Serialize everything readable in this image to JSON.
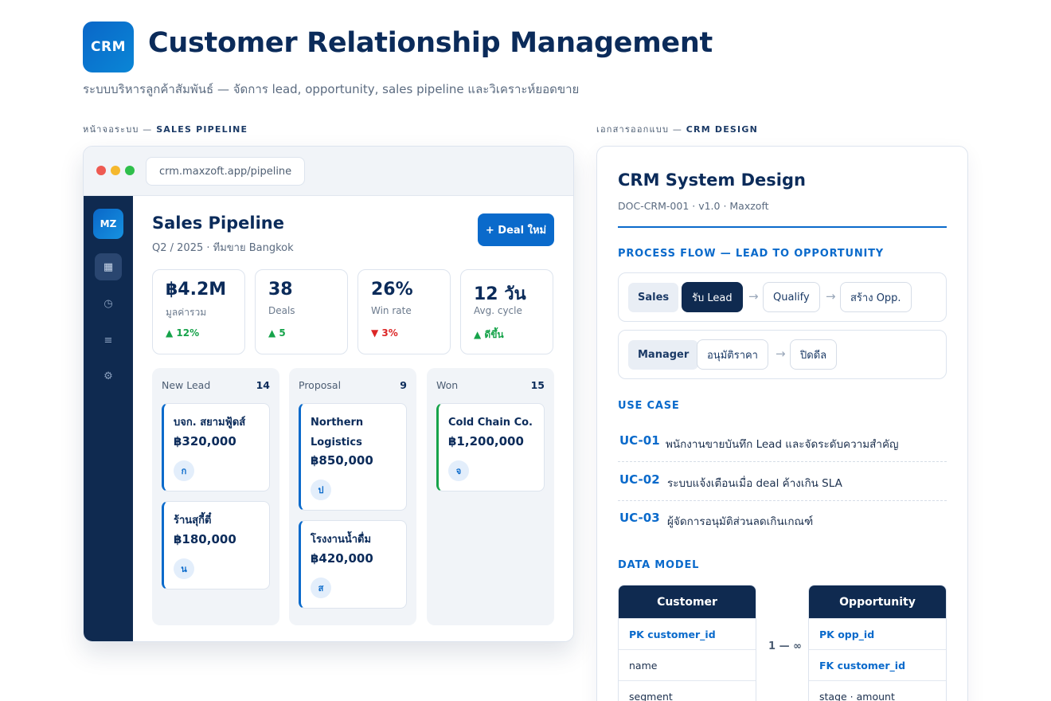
{
  "header": {
    "logo_text": "CRM",
    "title": "Customer Relationship Management",
    "subtitle": "ระบบบริหารลูกค้าสัมพันธ์ — จัดการ lead, opportunity, sales pipeline และวิเคราะห์ยอดขาย"
  },
  "sections": {
    "left_prefix": "หน้าจอระบบ —",
    "left_name": "SALES PIPELINE",
    "right_prefix": "เอกสารออกแบบ —",
    "right_name": "CRM DESIGN"
  },
  "browser": {
    "url": "crm.maxzoft.app/pipeline",
    "dots": [
      "#ee5a52",
      "#f5b82e",
      "#2fbf4b"
    ]
  },
  "sidebar": {
    "logo_text": "MZ",
    "items": [
      {
        "icon": "grid-icon",
        "glyph": "▦",
        "active": true
      },
      {
        "icon": "clock-icon",
        "glyph": "◷",
        "active": false
      },
      {
        "icon": "list-icon",
        "glyph": "≡",
        "active": false
      },
      {
        "icon": "gear-icon",
        "glyph": "⚙",
        "active": false
      }
    ]
  },
  "pipeline": {
    "title": "Sales Pipeline",
    "subtitle": "Q2 / 2025 · ทีมขาย Bangkok",
    "new_deal_label": "+ Deal ใหม่",
    "kpis": [
      {
        "value": "฿4.2M",
        "label": "มูลค่ารวม",
        "delta": "▲ 12%",
        "trend": "up"
      },
      {
        "value": "38",
        "label": "Deals",
        "delta": "▲ 5",
        "trend": "up"
      },
      {
        "value": "26%",
        "label": "Win rate",
        "delta": "▼ 3%",
        "trend": "down"
      },
      {
        "value": "12 วัน",
        "label": "Avg. cycle",
        "delta": "▲ ดีขึ้น",
        "trend": "up"
      }
    ],
    "columns": [
      {
        "name": "New Lead",
        "count": "14",
        "cards": [
          {
            "name": "บจก. สยามฟู้ดส์",
            "amount": "฿320,000",
            "owner": "ก"
          },
          {
            "name": "ร้านสุกี้ตี๋",
            "amount": "฿180,000",
            "owner": "น"
          }
        ]
      },
      {
        "name": "Proposal",
        "count": "9",
        "cards": [
          {
            "name": "Northern Logistics",
            "amount": "฿850,000",
            "owner": "ป"
          },
          {
            "name": "โรงงานน้ำดื่ม",
            "amount": "฿420,000",
            "owner": "ส"
          }
        ]
      },
      {
        "name": "Won",
        "count": "15",
        "cards": [
          {
            "name": "Cold Chain Co.",
            "amount": "฿1,200,000",
            "owner": "จ"
          }
        ]
      }
    ]
  },
  "doc": {
    "title": "CRM System Design",
    "meta": "DOC-CRM-001 · v1.0 · Maxzoft",
    "process_heading": "PROCESS FLOW — LEAD TO OPPORTUNITY",
    "flows": [
      {
        "role": "Sales",
        "steps": [
          "รับ Lead",
          "Qualify",
          "สร้าง Opp."
        ],
        "active_step": 0
      },
      {
        "role": "Manager",
        "steps": [
          "อนุมัติราคา",
          "ปิดดีล"
        ],
        "active_step": -1
      }
    ],
    "usecase_heading": "USE CASE",
    "usecases": [
      {
        "id": "UC-01",
        "text": "พนักงานขายบันทึก Lead และจัดระดับความสำคัญ"
      },
      {
        "id": "UC-02",
        "text": "ระบบแจ้งเตือนเมื่อ deal ค้างเกิน SLA"
      },
      {
        "id": "UC-03",
        "text": "ผู้จัดการอนุมัติส่วนลดเกินเกณฑ์"
      }
    ],
    "datamodel_heading": "DATA MODEL",
    "entities": [
      {
        "name": "Customer",
        "fields": [
          {
            "text": "PK customer_id",
            "key": true
          },
          {
            "text": "name",
            "key": false
          },
          {
            "text": "segment",
            "key": false
          }
        ]
      },
      {
        "name": "Opportunity",
        "fields": [
          {
            "text": "PK opp_id",
            "key": true
          },
          {
            "text": "FK customer_id",
            "key": true
          },
          {
            "text": "stage · amount",
            "key": false
          }
        ]
      }
    ],
    "relation": "1 — ∞"
  }
}
